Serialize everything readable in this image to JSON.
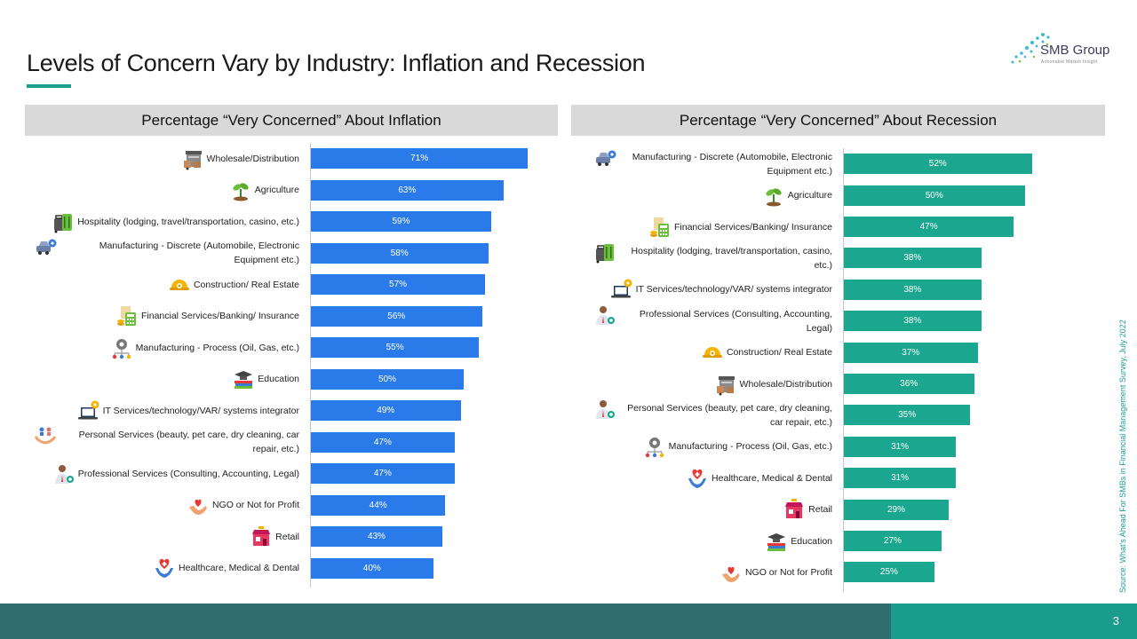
{
  "title": "Levels of Concern Vary by Industry: Inflation and Recession",
  "logo": {
    "name": "SMB Group",
    "tagline": "Actionable Market Insight"
  },
  "source": "Source: What's Ahead For SMBs in Financial Management Survey, July 2022",
  "page_number": "3",
  "colors": {
    "inflation_bar": "#2a7ae9",
    "recession_bar": "#1aa68f",
    "accent": "#1a9c8c",
    "footer_dark": "#2e6e6f"
  },
  "chart_data": [
    {
      "type": "bar",
      "orientation": "horizontal",
      "title": "Percentage “Very Concerned” About Inflation",
      "categories": [
        "Wholesale/Distribution",
        "Agriculture",
        "Hospitality (lodging, travel/transportation, casino, etc.)",
        "Manufacturing - Discrete (Automobile, Electronic Equipment etc.)",
        "Construction/ Real Estate",
        "Financial Services/Banking/ Insurance",
        "Manufacturing - Process (Oil, Gas, etc.)",
        "Education",
        "IT Services/technology/VAR/ systems integrator",
        "Personal Services (beauty, pet care, dry cleaning, car repair, etc.)",
        "Professional Services (Consulting, Accounting, Legal)",
        "NGO or Not for Profit",
        "Retail",
        "Healthcare, Medical & Dental"
      ],
      "values": [
        71,
        63,
        59,
        58,
        57,
        56,
        55,
        50,
        49,
        47,
        47,
        44,
        43,
        40
      ],
      "value_labels": [
        "71%",
        "63%",
        "59%",
        "58%",
        "57%",
        "56%",
        "55%",
        "50%",
        "49%",
        "47%",
        "47%",
        "44%",
        "43%",
        "40%"
      ],
      "icons": [
        "warehouse-icon",
        "plant-icon",
        "luggage-icon",
        "car-gear-icon",
        "hard-hat-icon",
        "calculator-coins-icon",
        "gear-network-icon",
        "books-cap-icon",
        "laptop-gear-icon",
        "hands-people-icon",
        "person-badge-icon",
        "hand-heart-icon",
        "store-icon",
        "medical-hand-icon"
      ],
      "xlim": [
        0,
        100
      ],
      "grid": false,
      "legend": "none"
    },
    {
      "type": "bar",
      "orientation": "horizontal",
      "title": "Percentage “Very Concerned” About Recession",
      "categories": [
        "Manufacturing - Discrete (Automobile, Electronic Equipment etc.)",
        "Agriculture",
        "Financial Services/Banking/ Insurance",
        "Hospitality (lodging, travel/transportation, casino, etc.)",
        "IT Services/technology/VAR/ systems integrator",
        "Professional Services (Consulting, Accounting, Legal)",
        "Construction/ Real Estate",
        "Wholesale/Distribution",
        "Personal Services (beauty, pet care, dry cleaning, car repair, etc.)",
        "Manufacturing - Process (Oil, Gas, etc.)",
        "Healthcare, Medical & Dental",
        "Retail",
        "Education",
        "NGO or Not for Profit"
      ],
      "values": [
        52,
        50,
        47,
        38,
        38,
        38,
        37,
        36,
        35,
        31,
        31,
        29,
        27,
        25
      ],
      "value_labels": [
        "52%",
        "50%",
        "47%",
        "38%",
        "38%",
        "38%",
        "37%",
        "36%",
        "35%",
        "31%",
        "31%",
        "29%",
        "27%",
        "25%"
      ],
      "icons": [
        "car-gear-icon",
        "plant-icon",
        "calculator-coins-icon",
        "luggage-icon",
        "laptop-gear-icon",
        "person-badge-icon",
        "hard-hat-icon",
        "warehouse-icon",
        "person-badge-icon",
        "gear-network-icon",
        "medical-hand-icon",
        "store-icon",
        "books-cap-icon",
        "hand-heart-icon"
      ],
      "xlim": [
        0,
        100
      ],
      "grid": false,
      "legend": "none"
    }
  ]
}
